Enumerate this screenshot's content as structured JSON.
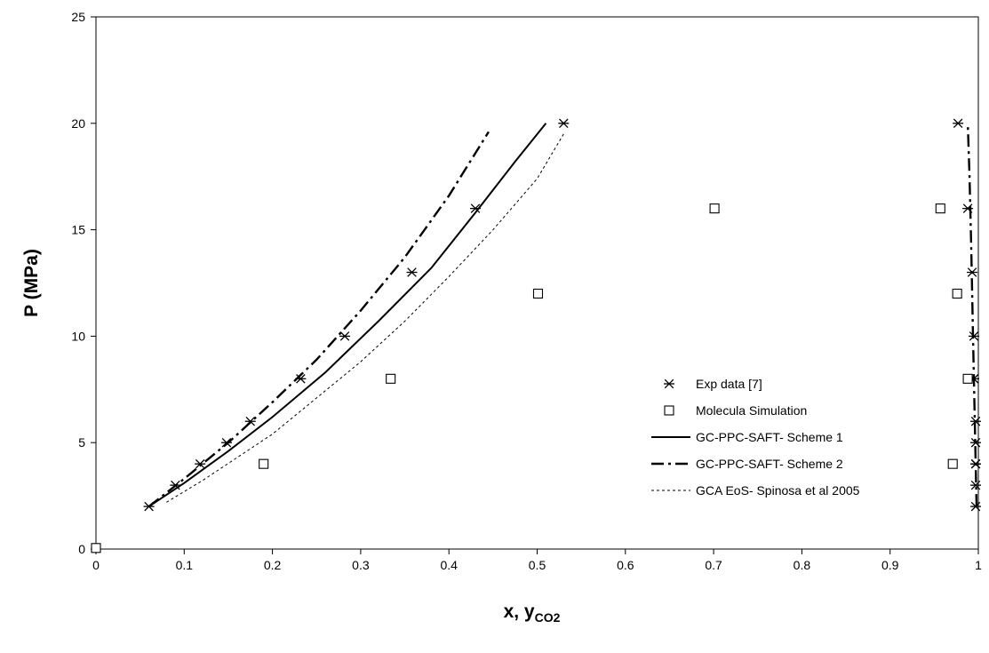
{
  "chart_data": {
    "type": "scatter",
    "xlabel": "x, y",
    "xlabel_subscript": "CO2",
    "ylabel": "P (MPa)",
    "xlim": [
      0,
      1
    ],
    "ylim": [
      0,
      25
    ],
    "x_ticks": [
      "0",
      "0.1",
      "0.2",
      "0.3",
      "0.4",
      "0.5",
      "0.6",
      "0.7",
      "0.8",
      "0.9",
      "1"
    ],
    "y_ticks": [
      "0",
      "5",
      "10",
      "15",
      "20",
      "25"
    ],
    "grid": false,
    "legend_placement": "center-right",
    "series": [
      {
        "name": "Exp data [7]",
        "kind": "marker",
        "marker": "asterisk",
        "color": "#000000",
        "x": [
          0.06,
          0.09,
          0.118,
          0.148,
          0.175,
          0.232,
          0.282,
          0.358,
          0.43,
          0.53,
          0.977,
          0.988,
          0.993,
          0.995,
          0.995,
          0.997,
          0.997,
          0.997,
          0.997,
          0.997,
          0.997
        ],
        "y": [
          2,
          3,
          4,
          5,
          6,
          8,
          10,
          13,
          16,
          20,
          20,
          16,
          13,
          10,
          8,
          6,
          5,
          4,
          4,
          3,
          2
        ]
      },
      {
        "name": "Molecula Simulation",
        "kind": "marker",
        "marker": "square",
        "color": "#000000",
        "x": [
          0,
          0.19,
          0.334,
          0.501,
          0.701,
          0.957,
          0.976,
          0.988,
          0.971
        ],
        "y": [
          0.05,
          4,
          8,
          12,
          16,
          16,
          12,
          8,
          4
        ]
      },
      {
        "name": "GC-PPC-SAFT- Scheme 1",
        "kind": "line",
        "dash": "solid",
        "color": "#000000",
        "x": [
          0.06,
          0.1,
          0.15,
          0.2,
          0.26,
          0.32,
          0.38,
          0.43,
          0.475,
          0.51
        ],
        "y": [
          2,
          3.1,
          4.6,
          6.2,
          8.3,
          10.7,
          13.2,
          15.8,
          18.2,
          20
        ]
      },
      {
        "name": "GC-PPC-SAFT- Scheme 2",
        "kind": "line",
        "dash": "dashdot",
        "color": "#000000",
        "x": [
          0.06,
          0.1,
          0.15,
          0.2,
          0.25,
          0.3,
          0.35,
          0.4,
          0.445,
          0.998,
          0.996,
          0.994,
          0.992,
          0.99,
          0.988
        ],
        "y": [
          2,
          3.3,
          5,
          6.9,
          8.9,
          11.2,
          13.7,
          16.6,
          19.6,
          2,
          6,
          10,
          14,
          17.5,
          20
        ]
      },
      {
        "name": "GCA EoS- Spinosa et al 2005",
        "kind": "line",
        "dash": "short-dash",
        "color": "#000000",
        "x": [
          0.08,
          0.12,
          0.16,
          0.2,
          0.25,
          0.3,
          0.35,
          0.4,
          0.45,
          0.5,
          0.53
        ],
        "y": [
          2.2,
          3.2,
          4.3,
          5.4,
          7.1,
          8.8,
          10.7,
          12.8,
          15,
          17.4,
          19.5
        ]
      }
    ]
  }
}
